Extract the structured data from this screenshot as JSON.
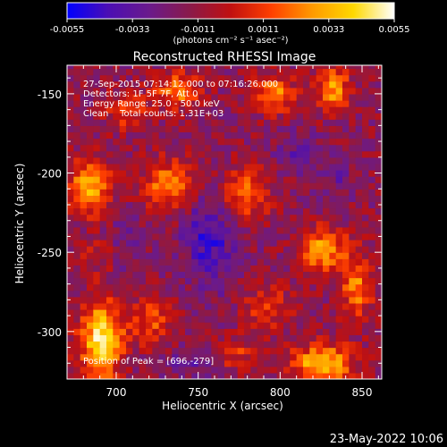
{
  "colorbar": {
    "ticks": [
      "-0.0055",
      "-0.0033",
      "-0.0011",
      "0.0011",
      "0.0033",
      "0.0055"
    ],
    "tick_values": [
      -0.0055,
      -0.0033,
      -0.0011,
      0.0011,
      0.0033,
      0.0055
    ],
    "range": [
      -0.0055,
      0.0055
    ],
    "unit_label": "(photons cm⁻² s⁻¹ asec⁻²)",
    "colormap": [
      "#0000ff",
      "#4b0eb4",
      "#6a1a8c",
      "#8a1a4a",
      "#c01010",
      "#ff4000",
      "#ff9a00",
      "#ffd800",
      "#ffffff"
    ]
  },
  "title": "Reconstructed RHESSI Image",
  "info": {
    "time_range": "27-Sep-2015 07:14:12.000 to 07:16:26.000",
    "detectors": "Detectors: 1F 5F 7F, Att 0",
    "energy": "Energy Range: 25.0 - 50.0 keV",
    "clean": "Clean    Total counts: 1.31E+03",
    "peak": "Position of Peak = [696,-279]"
  },
  "axes": {
    "xlabel": "Heliocentric X (arcsec)",
    "ylabel": "Heliocentric Y (arcsec)",
    "xticks": [
      "700",
      "750",
      "800",
      "850"
    ],
    "yticks": [
      "-150",
      "-200",
      "-250",
      "-300"
    ]
  },
  "footer_date": "23-May-2022 10:06",
  "chart_data": {
    "type": "heatmap",
    "title": "Reconstructed RHESSI Image",
    "xlabel": "Heliocentric X (arcsec)",
    "ylabel": "Heliocentric Y (arcsec)",
    "xlim": [
      670,
      862
    ],
    "ylim": [
      -330,
      -132
    ],
    "xticks": [
      700,
      750,
      800,
      850
    ],
    "yticks": [
      -150,
      -200,
      -250,
      -300
    ],
    "color_range": [
      -0.0055,
      0.0055
    ],
    "peak_position": [
      696,
      -279
    ],
    "grid_step": 4,
    "sources": [
      {
        "x": 691,
        "y": -305,
        "value": 0.0058,
        "sx": 9,
        "sy": 18
      },
      {
        "x": 684,
        "y": -208,
        "value": 0.0042,
        "sx": 9,
        "sy": 12
      },
      {
        "x": 733,
        "y": -207,
        "value": 0.0038,
        "sx": 11,
        "sy": 11
      },
      {
        "x": 778,
        "y": -213,
        "value": 0.0032,
        "sx": 10,
        "sy": 12
      },
      {
        "x": 826,
        "y": -248,
        "value": 0.004,
        "sx": 10,
        "sy": 10
      },
      {
        "x": 737,
        "y": -148,
        "value": 0.0034,
        "sx": 10,
        "sy": 8
      },
      {
        "x": 796,
        "y": -150,
        "value": 0.0036,
        "sx": 9,
        "sy": 8
      },
      {
        "x": 832,
        "y": -146,
        "value": 0.004,
        "sx": 7,
        "sy": 10
      },
      {
        "x": 847,
        "y": -272,
        "value": 0.0033,
        "sx": 7,
        "sy": 14
      },
      {
        "x": 826,
        "y": -320,
        "value": 0.0052,
        "sx": 13,
        "sy": 8
      },
      {
        "x": 722,
        "y": -293,
        "value": 0.0025,
        "sx": 9,
        "sy": 10
      },
      {
        "x": 793,
        "y": -285,
        "value": 0.002,
        "sx": 10,
        "sy": 10
      },
      {
        "x": 706,
        "y": -160,
        "value": 0.0024,
        "sx": 8,
        "sy": 8
      },
      {
        "x": 773,
        "y": -314,
        "value": 0.0018,
        "sx": 9,
        "sy": 7
      },
      {
        "x": 690,
        "y": -250,
        "value": 0.0012,
        "sx": 8,
        "sy": 8
      },
      {
        "x": 757,
        "y": -240,
        "value": -0.003,
        "sx": 11,
        "sy": 22
      },
      {
        "x": 810,
        "y": -185,
        "value": -0.0018,
        "sx": 9,
        "sy": 9
      },
      {
        "x": 705,
        "y": -245,
        "value": -0.0014,
        "sx": 10,
        "sy": 12
      },
      {
        "x": 835,
        "y": -205,
        "value": -0.0014,
        "sx": 8,
        "sy": 10
      },
      {
        "x": 745,
        "y": -320,
        "value": -0.002,
        "sx": 8,
        "sy": 6
      }
    ],
    "baseline": -0.0014
  }
}
